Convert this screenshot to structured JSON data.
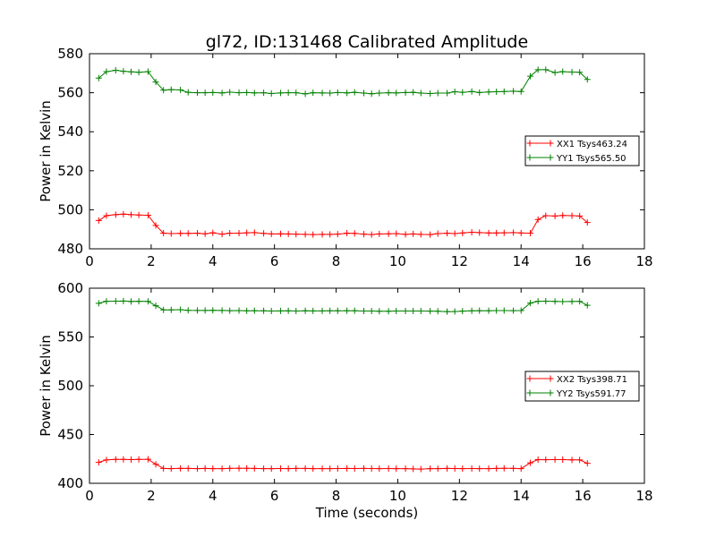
{
  "figure": {
    "title": "gl72, ID:131468 Calibrated Amplitude"
  },
  "chart_data": [
    {
      "type": "line",
      "title": "gl72, ID:131468 Calibrated Amplitude",
      "xlabel": "",
      "ylabel": "Power in Kelvin",
      "xlim": [
        0,
        18
      ],
      "ylim": [
        480,
        580
      ],
      "xticks": [
        0,
        2,
        4,
        6,
        8,
        10,
        12,
        14,
        16,
        18
      ],
      "yticks": [
        480,
        500,
        520,
        540,
        560,
        580
      ],
      "grid": false,
      "legend_position": "center-right",
      "x": [
        0.3,
        0.55,
        0.85,
        1.1,
        1.35,
        1.6,
        1.9,
        2.15,
        2.4,
        2.65,
        2.95,
        3.2,
        3.5,
        3.75,
        4.0,
        4.3,
        4.55,
        4.85,
        5.1,
        5.35,
        5.65,
        5.9,
        6.2,
        6.45,
        6.7,
        7.0,
        7.25,
        7.55,
        7.8,
        8.05,
        8.35,
        8.6,
        8.9,
        9.15,
        9.4,
        9.7,
        9.95,
        10.25,
        10.5,
        10.75,
        11.05,
        11.3,
        11.6,
        11.85,
        12.1,
        12.4,
        12.65,
        12.95,
        13.2,
        13.45,
        13.75,
        14.0,
        14.3,
        14.55,
        14.8,
        15.1,
        15.35,
        15.65,
        15.9,
        16.15
      ],
      "series": [
        {
          "name": "XX1 Tsys463.24",
          "color": "#ff0000",
          "values": [
            494.5,
            497.0,
            497.5,
            497.8,
            497.5,
            497.3,
            497.2,
            492.0,
            488.0,
            487.8,
            487.9,
            487.9,
            488.0,
            487.7,
            488.2,
            487.5,
            488.0,
            488.0,
            488.2,
            488.3,
            487.9,
            487.6,
            487.7,
            487.6,
            487.5,
            487.4,
            487.3,
            487.4,
            487.4,
            487.5,
            488.0,
            487.9,
            487.5,
            487.3,
            487.6,
            487.7,
            487.8,
            487.4,
            487.6,
            487.4,
            487.3,
            487.8,
            488.0,
            487.8,
            488.1,
            488.5,
            488.3,
            488.1,
            488.1,
            488.2,
            488.3,
            488.1,
            488.0,
            495.0,
            497.0,
            496.8,
            497.1,
            497.0,
            496.8,
            493.5
          ]
        },
        {
          "name": "YY1 Tsys565.50",
          "color": "#008000",
          "values": [
            567.5,
            570.8,
            571.5,
            571.0,
            570.7,
            570.5,
            570.8,
            565.5,
            561.3,
            561.6,
            561.4,
            560.2,
            560.0,
            560.0,
            560.1,
            559.9,
            560.3,
            560.0,
            560.1,
            559.9,
            560.0,
            559.6,
            559.9,
            560.0,
            560.0,
            559.4,
            560.0,
            559.9,
            559.8,
            560.1,
            559.9,
            560.2,
            559.8,
            559.5,
            559.8,
            560.0,
            559.9,
            560.1,
            560.2,
            559.8,
            559.6,
            559.8,
            559.8,
            560.5,
            560.2,
            560.6,
            560.1,
            560.4,
            560.5,
            560.6,
            560.8,
            560.6,
            568.5,
            571.8,
            571.8,
            570.3,
            570.8,
            570.6,
            570.5,
            566.8
          ]
        }
      ]
    },
    {
      "type": "line",
      "title": "",
      "xlabel": "Time (seconds)",
      "ylabel": "Power in Kelvin",
      "xlim": [
        0,
        18
      ],
      "ylim": [
        400,
        600
      ],
      "xticks": [
        0,
        2,
        4,
        6,
        8,
        10,
        12,
        14,
        16,
        18
      ],
      "yticks": [
        400,
        450,
        500,
        550,
        600
      ],
      "grid": false,
      "legend_position": "center-right",
      "x": [
        0.3,
        0.55,
        0.85,
        1.1,
        1.35,
        1.6,
        1.9,
        2.15,
        2.4,
        2.65,
        2.95,
        3.2,
        3.5,
        3.75,
        4.0,
        4.3,
        4.55,
        4.85,
        5.1,
        5.35,
        5.65,
        5.9,
        6.2,
        6.45,
        6.7,
        7.0,
        7.25,
        7.55,
        7.8,
        8.05,
        8.35,
        8.6,
        8.9,
        9.15,
        9.4,
        9.7,
        9.95,
        10.25,
        10.5,
        10.75,
        11.05,
        11.3,
        11.6,
        11.85,
        12.1,
        12.4,
        12.65,
        12.95,
        13.2,
        13.45,
        13.75,
        14.0,
        14.3,
        14.55,
        14.8,
        15.1,
        15.35,
        15.65,
        15.9,
        16.15
      ],
      "series": [
        {
          "name": "XX2 Tsys398.71",
          "color": "#ff0000",
          "values": [
            421.5,
            424.0,
            424.5,
            424.5,
            424.3,
            424.5,
            424.6,
            419.5,
            415.2,
            415.0,
            415.3,
            415.2,
            415.0,
            415.2,
            415.0,
            415.0,
            415.3,
            415.4,
            415.4,
            415.2,
            415.0,
            415.0,
            415.1,
            415.0,
            415.2,
            415.2,
            415.0,
            415.0,
            415.0,
            415.1,
            415.2,
            415.1,
            415.2,
            415.1,
            415.0,
            415.1,
            415.0,
            415.0,
            414.8,
            414.6,
            415.0,
            415.0,
            415.2,
            415.1,
            415.0,
            415.1,
            415.0,
            415.0,
            415.2,
            415.4,
            415.3,
            415.0,
            421.0,
            424.3,
            424.2,
            424.3,
            424.3,
            424.0,
            424.0,
            420.5
          ]
        },
        {
          "name": "YY2 Tsys591.77",
          "color": "#008000",
          "values": [
            584.5,
            586.6,
            586.7,
            586.8,
            586.4,
            586.6,
            586.5,
            582.0,
            577.8,
            577.8,
            578.0,
            577.3,
            577.2,
            577.2,
            577.3,
            577.2,
            577.0,
            577.1,
            576.8,
            576.9,
            576.8,
            576.6,
            576.7,
            576.8,
            576.6,
            576.8,
            576.7,
            576.7,
            576.8,
            576.8,
            576.9,
            576.9,
            576.6,
            576.6,
            576.4,
            576.4,
            576.6,
            576.6,
            576.6,
            576.6,
            576.5,
            576.4,
            576.0,
            576.1,
            576.5,
            576.8,
            577.0,
            576.9,
            577.1,
            577.1,
            577.0,
            577.1,
            584.8,
            586.6,
            586.7,
            586.5,
            586.2,
            586.4,
            586.5,
            582.5
          ]
        }
      ]
    }
  ]
}
